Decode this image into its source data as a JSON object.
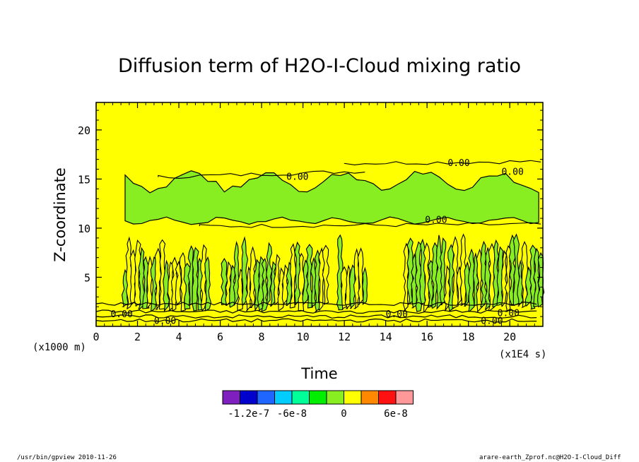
{
  "chart_data": {
    "type": "heatmap",
    "title": "Diffusion term of H2O-I-Cloud mixing ratio",
    "xlabel": "Time",
    "ylabel": "Z-coordinate",
    "x_unit": "(x1E4 s)",
    "y_unit": "(x1000 m)",
    "xlim": [
      0,
      21.6
    ],
    "ylim": [
      0,
      22.8
    ],
    "x_ticks": [
      0,
      2,
      4,
      6,
      8,
      10,
      12,
      14,
      16,
      18,
      20
    ],
    "y_ticks": [
      5,
      10,
      15,
      20
    ],
    "contour_labels": [
      "0.00"
    ],
    "colorbar": {
      "colors": [
        "#7f1fbf",
        "#0000cc",
        "#1f66ff",
        "#00ccff",
        "#00ff99",
        "#00ee00",
        "#88ee22",
        "#ffff00",
        "#ff8800",
        "#ff1111",
        "#ff9999"
      ],
      "tick_labels": [
        "-1.2e-7",
        "-6e-8",
        "0",
        "6e-8"
      ]
    },
    "background_color": "#ffff00",
    "negative_color": "#88ee22",
    "green_band": {
      "x_from": 1.4,
      "x_to": 21.6,
      "z_from": 10.6,
      "z_to": 15.6
    },
    "convective_cores": [
      {
        "x_from": 1.3,
        "x_to": 5.5,
        "z_from": 1.5,
        "z_to": 8.8
      },
      {
        "x_from": 6.1,
        "x_to": 11.2,
        "z_from": 1.5,
        "z_to": 8.8
      },
      {
        "x_from": 11.7,
        "x_to": 13.1,
        "z_from": 1.5,
        "z_to": 9.0
      },
      {
        "x_from": 14.9,
        "x_to": 21.6,
        "z_from": 1.5,
        "z_to": 9.0
      }
    ]
  },
  "footer": {
    "left": "/usr/bin/gpview  2010-11-26",
    "right": "arare-earth_Zprof.nc@H2O-I-Cloud_Diff"
  }
}
